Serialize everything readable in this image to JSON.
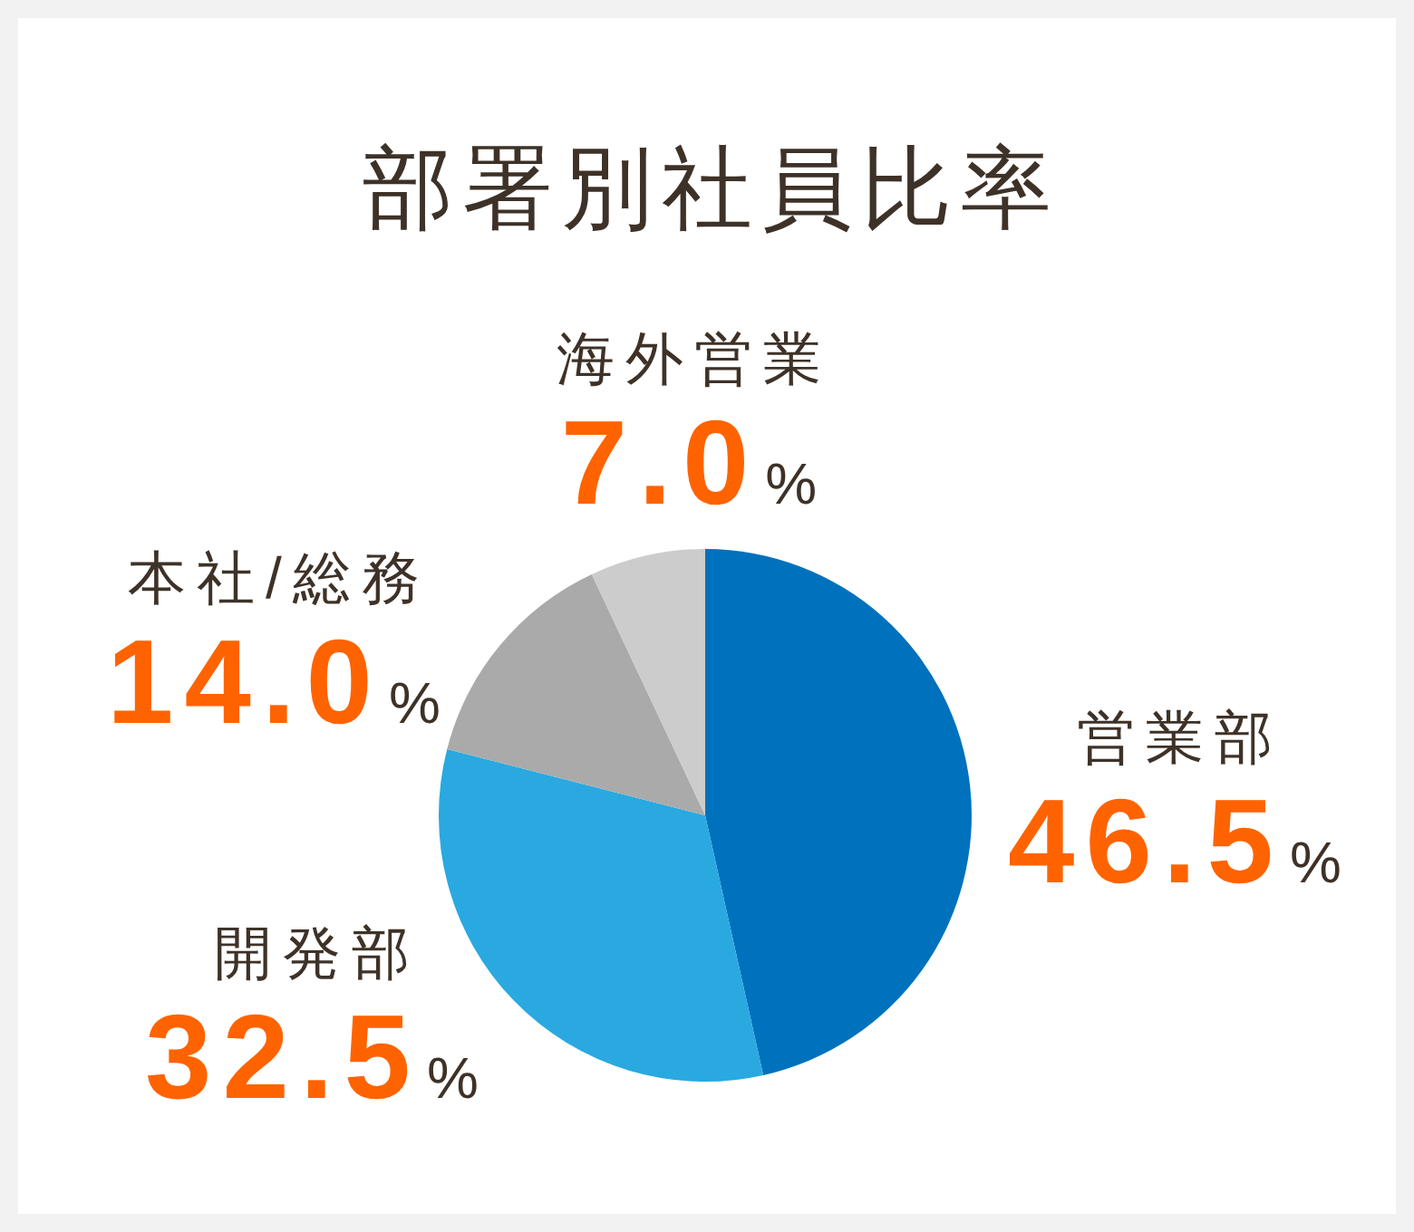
{
  "chart_data": {
    "type": "pie",
    "title": "部署別社員比率",
    "categories": [
      "営業部",
      "開発部",
      "本社/総務",
      "海外営業"
    ],
    "values": [
      46.5,
      32.5,
      14.0,
      7.0
    ],
    "colors": [
      "#0071bc",
      "#29a9e0",
      "#aaaaaa",
      "#cccccc"
    ],
    "value_labels": [
      "46.5%",
      "32.5%",
      "14.0%",
      "7.0%"
    ]
  }
}
